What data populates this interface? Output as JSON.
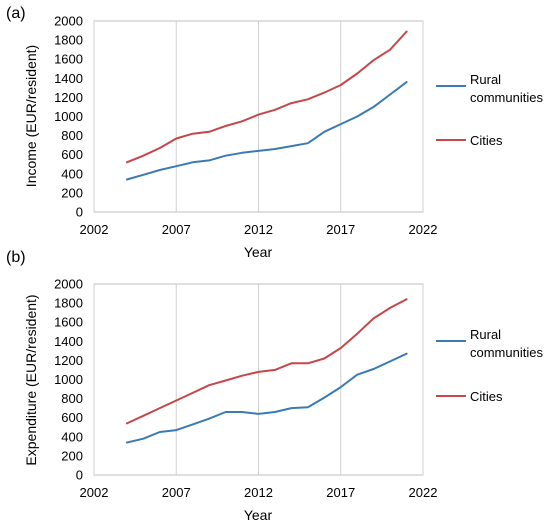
{
  "chart_data": [
    {
      "type": "line",
      "panel_label": "(a)",
      "xlabel": "Year",
      "ylabel": "Income (EUR/resident)",
      "xlim": [
        2002,
        2022
      ],
      "ylim": [
        0,
        2000
      ],
      "x_ticks": [
        "2002",
        "2007",
        "2012",
        "2017",
        "2022"
      ],
      "y_ticks": [
        "0",
        "200",
        "400",
        "600",
        "800",
        "1000",
        "1200",
        "1400",
        "1600",
        "1800",
        "2000"
      ],
      "grid": "vertical",
      "legend_position": "right",
      "x": [
        2004,
        2005,
        2006,
        2007,
        2008,
        2009,
        2010,
        2011,
        2012,
        2013,
        2014,
        2015,
        2016,
        2017,
        2018,
        2019,
        2020,
        2021
      ],
      "series": [
        {
          "name": "Rural communities",
          "color": "#3a7ab5",
          "values": [
            340,
            390,
            440,
            480,
            520,
            540,
            590,
            620,
            640,
            660,
            690,
            720,
            840,
            920,
            1000,
            1100,
            1230,
            1360
          ]
        },
        {
          "name": "Cities",
          "color": "#c5474a",
          "values": [
            520,
            590,
            670,
            770,
            820,
            840,
            900,
            950,
            1020,
            1070,
            1140,
            1180,
            1250,
            1330,
            1450,
            1590,
            1700,
            1890
          ]
        }
      ]
    },
    {
      "type": "line",
      "panel_label": "(b)",
      "xlabel": "Year",
      "ylabel": "Expenditure (EUR/resident)",
      "xlim": [
        2002,
        2022
      ],
      "ylim": [
        0,
        2000
      ],
      "x_ticks": [
        "2002",
        "2007",
        "2012",
        "2017",
        "2022"
      ],
      "y_ticks": [
        "0",
        "200",
        "400",
        "600",
        "800",
        "1000",
        "1200",
        "1400",
        "1600",
        "1800",
        "2000"
      ],
      "grid": "vertical",
      "legend_position": "right",
      "x": [
        2004,
        2005,
        2006,
        2007,
        2008,
        2009,
        2010,
        2011,
        2012,
        2013,
        2014,
        2015,
        2016,
        2017,
        2018,
        2019,
        2020,
        2021
      ],
      "series": [
        {
          "name": "Rural communities",
          "color": "#3a7ab5",
          "values": [
            340,
            380,
            450,
            470,
            530,
            590,
            660,
            660,
            640,
            660,
            700,
            710,
            810,
            920,
            1050,
            1110,
            1190,
            1270
          ]
        },
        {
          "name": "Cities",
          "color": "#c5474a",
          "values": [
            540,
            620,
            700,
            780,
            860,
            940,
            990,
            1040,
            1080,
            1100,
            1170,
            1170,
            1220,
            1330,
            1480,
            1640,
            1750,
            1840
          ]
        }
      ]
    }
  ]
}
